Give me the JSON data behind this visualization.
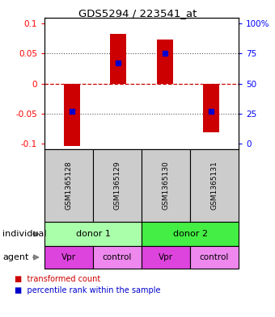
{
  "title": "GDS5294 / 223541_at",
  "samples": [
    "GSM1365128",
    "GSM1365129",
    "GSM1365130",
    "GSM1365131"
  ],
  "bar_values": [
    -0.105,
    0.083,
    0.073,
    -0.082
  ],
  "percentile_values": [
    -0.047,
    0.035,
    0.051,
    -0.047
  ],
  "ylim": [
    -0.11,
    0.11
  ],
  "yticks_left": [
    -0.1,
    -0.05,
    0,
    0.05,
    0.1
  ],
  "ytick_labels_left": [
    "-0.1",
    "-0.05",
    "0",
    "0.05",
    "0.1"
  ],
  "ytick_labels_right": [
    "0",
    "25",
    "50",
    "75",
    "100%"
  ],
  "bar_color": "#cc0000",
  "percentile_color": "#0000cc",
  "zero_line_color": "#cc0000",
  "dotted_color": "#555555",
  "individual_labels": [
    "donor 1",
    "donor 2"
  ],
  "individual_colors": [
    "#aaffaa",
    "#44ee44"
  ],
  "agent_labels": [
    "Vpr",
    "control",
    "Vpr",
    "control"
  ],
  "agent_colors": [
    "#dd44dd",
    "#ee88ee",
    "#dd44dd",
    "#ee88ee"
  ],
  "sample_box_color": "#cccccc",
  "bar_width": 0.35,
  "legend_bar_label": "transformed count",
  "legend_pct_label": "percentile rank within the sample",
  "individual_row_label": "individual",
  "agent_row_label": "agent"
}
